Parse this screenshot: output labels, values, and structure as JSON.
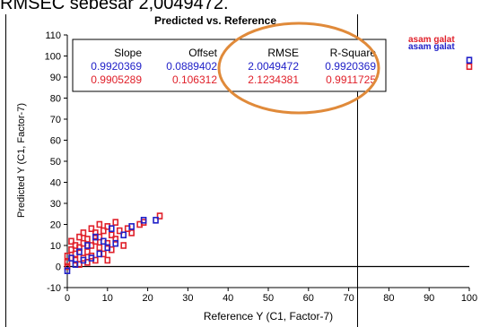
{
  "caption": "RMSEC sebesar 2,0049472.",
  "colors": {
    "blue": "#2020c8",
    "red": "#e0202a",
    "highlight": "#e08a3a",
    "axis": "#000000"
  },
  "chart_data": {
    "type": "scatter",
    "title": "Predicted vs. Reference",
    "xlabel": "Reference Y (C1, Factor-7)",
    "ylabel": "Predicted Y (C1, Factor-7)",
    "xlim": [
      0,
      100
    ],
    "ylim": [
      -10,
      110
    ],
    "xticks": [
      0,
      10,
      20,
      30,
      40,
      50,
      60,
      70,
      80,
      90,
      100
    ],
    "yticks": [
      -10,
      0,
      10,
      20,
      30,
      40,
      50,
      60,
      70,
      80,
      90,
      100,
      110
    ],
    "grid": false,
    "legend_position": "right",
    "series": [
      {
        "name": "asam galat",
        "color": "#e0202a",
        "points": [
          [
            0,
            0
          ],
          [
            0,
            2
          ],
          [
            0,
            5
          ],
          [
            1,
            8
          ],
          [
            1,
            12
          ],
          [
            2,
            3
          ],
          [
            2,
            6
          ],
          [
            2,
            10
          ],
          [
            3,
            1
          ],
          [
            3,
            14
          ],
          [
            3,
            9
          ],
          [
            4,
            4
          ],
          [
            4,
            11
          ],
          [
            4,
            16
          ],
          [
            5,
            7
          ],
          [
            5,
            2
          ],
          [
            5,
            13
          ],
          [
            6,
            10
          ],
          [
            6,
            18
          ],
          [
            6,
            5
          ],
          [
            7,
            12
          ],
          [
            7,
            3
          ],
          [
            7,
            16
          ],
          [
            8,
            9
          ],
          [
            8,
            20
          ],
          [
            8,
            14
          ],
          [
            9,
            6
          ],
          [
            9,
            17
          ],
          [
            10,
            11
          ],
          [
            10,
            19
          ],
          [
            10,
            3
          ],
          [
            11,
            15
          ],
          [
            11,
            8
          ],
          [
            12,
            21
          ],
          [
            12,
            13
          ],
          [
            13,
            17
          ],
          [
            14,
            10
          ],
          [
            15,
            18
          ],
          [
            16,
            16
          ],
          [
            18,
            20
          ],
          [
            19,
            21
          ],
          [
            23,
            24
          ],
          [
            100,
            95
          ]
        ]
      },
      {
        "name": "asam galat",
        "color": "#2020c8",
        "points": [
          [
            0,
            -2
          ],
          [
            1,
            4
          ],
          [
            2,
            1
          ],
          [
            3,
            7
          ],
          [
            4,
            3
          ],
          [
            5,
            10
          ],
          [
            6,
            4
          ],
          [
            7,
            14
          ],
          [
            8,
            6
          ],
          [
            9,
            12
          ],
          [
            10,
            9
          ],
          [
            11,
            18
          ],
          [
            12,
            11
          ],
          [
            14,
            15
          ],
          [
            16,
            19
          ],
          [
            19,
            22
          ],
          [
            22,
            22
          ],
          [
            100,
            98
          ]
        ]
      }
    ],
    "stats": {
      "headers": [
        "Slope",
        "Offset",
        "RMSE",
        "R-Square"
      ],
      "rows": [
        {
          "color": "#2020c8",
          "values": [
            "0.9920369",
            "0.0889402",
            "2.0049472",
            "0.9920369"
          ]
        },
        {
          "color": "#e0202a",
          "values": [
            "0.9905289",
            "0.106312",
            "2.1234381",
            "0.9911725"
          ]
        }
      ]
    }
  }
}
